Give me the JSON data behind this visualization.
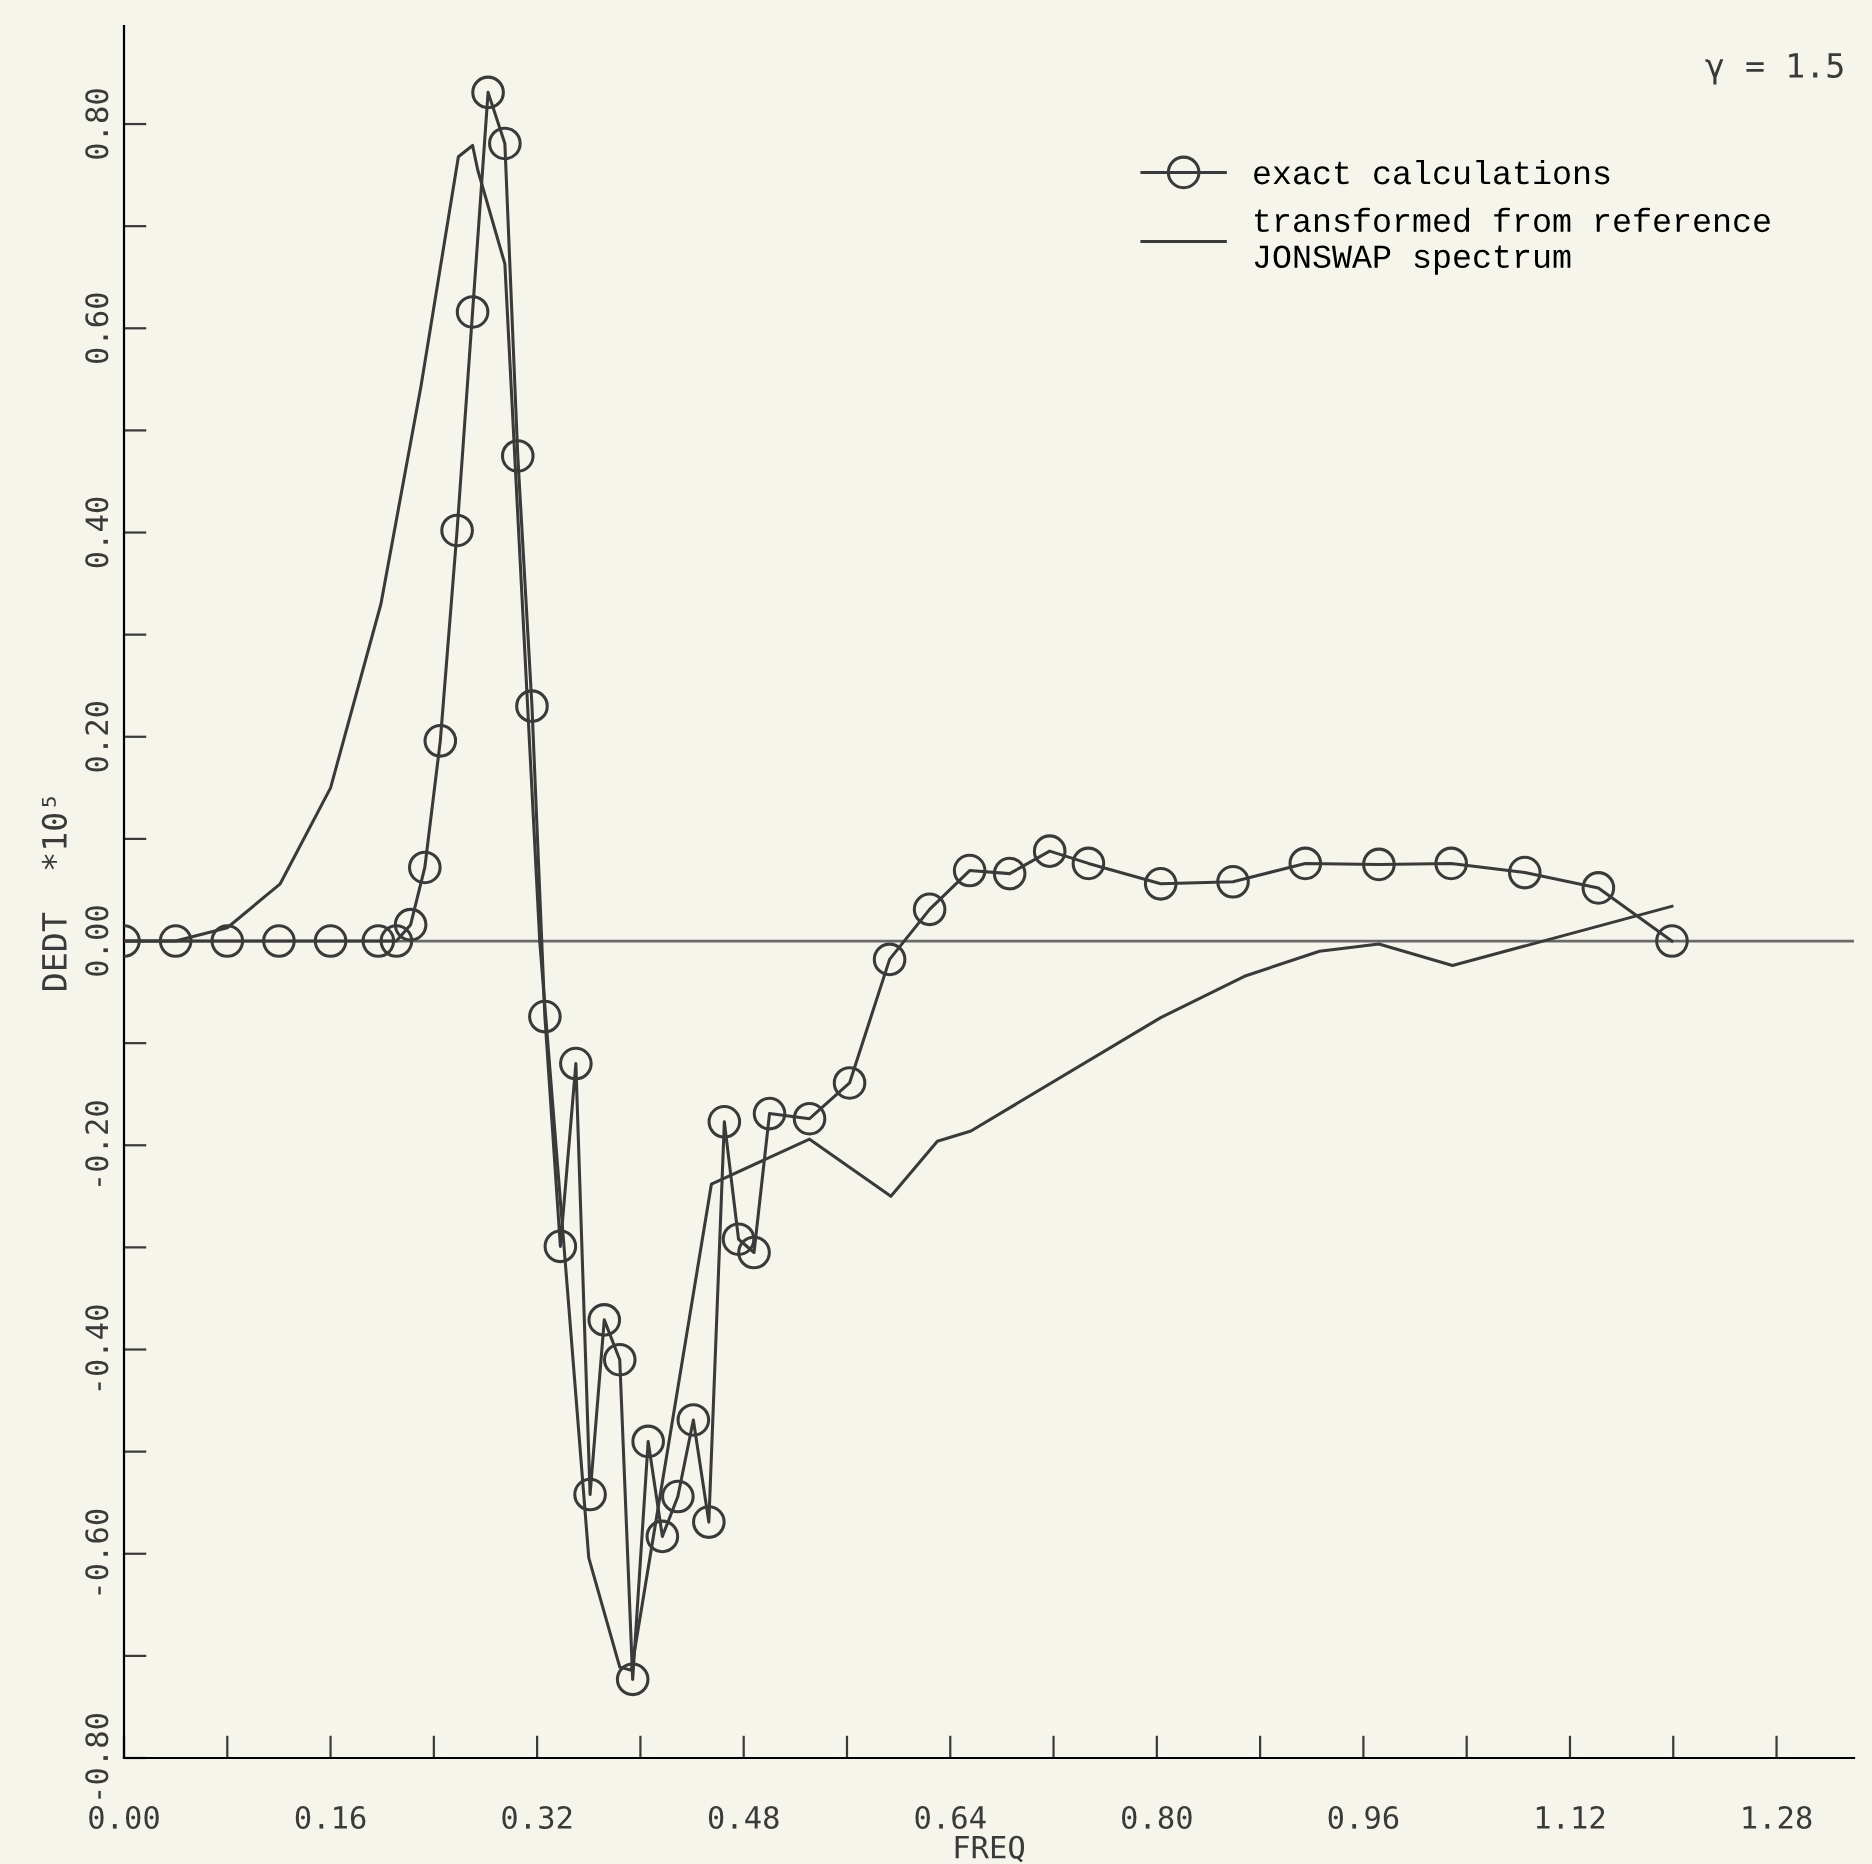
{
  "chart_data": {
    "type": "line",
    "xlabel": "FREQ",
    "ylabel": "DEDT  *10⁵",
    "annotations": [
      "γ = 1.5"
    ],
    "series": [
      {
        "name": "exact calculations",
        "color": "#3a3a3a",
        "marker": "circle",
        "x": [
          0,
          0.04,
          0.08,
          0.12,
          0.16,
          0.197,
          0.211,
          0.222,
          0.233,
          0.245,
          0.258,
          0.27,
          0.282,
          0.295,
          0.305,
          0.316,
          0.326,
          0.338,
          0.35,
          0.361,
          0.372,
          0.384,
          0.394,
          0.406,
          0.417,
          0.429,
          0.441,
          0.453,
          0.465,
          0.476,
          0.488,
          0.5,
          0.531,
          0.562,
          0.593,
          0.624,
          0.655,
          0.686,
          0.717,
          0.747,
          0.803,
          0.859,
          0.915,
          0.972,
          1.028,
          1.085,
          1.142,
          1.199
        ],
        "values": [
          0,
          0,
          0,
          0,
          0,
          0,
          0,
          0.016,
          0.072,
          0.196,
          0.402,
          0.616,
          0.831,
          0.781,
          0.475,
          0.23,
          -0.074,
          -0.299,
          -0.12,
          -0.542,
          -0.371,
          -0.41,
          -0.723,
          -0.49,
          -0.583,
          -0.544,
          -0.469,
          -0.569,
          -0.177,
          -0.292,
          -0.305,
          -0.169,
          -0.174,
          -0.139,
          -0.018,
          0.031,
          0.069,
          0.066,
          0.088,
          0.076,
          0.056,
          0.058,
          0.076,
          0.075,
          0.076,
          0.067,
          0.052,
          0
        ]
      },
      {
        "name": "transformed from reference\nJONSWAP spectrum",
        "color": "#3a3a3a",
        "marker": "none",
        "x": [
          0,
          0.04,
          0.08,
          0.121,
          0.16,
          0.199,
          0.23,
          0.259,
          0.27,
          0.274,
          0.295,
          0.322,
          0.36,
          0.384,
          0.393,
          0.455,
          0.531,
          0.594,
          0.63,
          0.656,
          0.803,
          0.869,
          0.926,
          0.972,
          1.029,
          1.199
        ],
        "values": [
          0,
          0,
          0.013,
          0.056,
          0.15,
          0.33,
          0.543,
          0.768,
          0.779,
          0.755,
          0.663,
          0,
          -0.604,
          -0.711,
          -0.714,
          -0.238,
          -0.194,
          -0.25,
          -0.196,
          -0.186,
          -0.075,
          -0.034,
          -0.01,
          -0.003,
          -0.024,
          0.034
        ]
      }
    ],
    "ref_lines": [
      {
        "axis": "y",
        "value": 0,
        "color": "#6a6a6a"
      }
    ],
    "xlim": [
      0,
      1.34
    ],
    "ylim": [
      -0.8,
      0.896
    ],
    "xticks": [
      {
        "value": 0,
        "label": "0.00"
      },
      {
        "value": 0.08,
        "label": null
      },
      0.16,
      {
        "value": 0.24,
        "label": null
      },
      0.32,
      {
        "value": 0.4,
        "label": null
      },
      0.48,
      {
        "value": 0.56,
        "label": null
      },
      0.64,
      {
        "value": 0.72,
        "label": null
      },
      {
        "value": 0.8,
        "label": "0.80"
      },
      {
        "value": 0.88,
        "label": null
      },
      0.96,
      {
        "value": 1.04,
        "label": null
      },
      1.12,
      {
        "value": 1.2,
        "label": null
      },
      1.28
    ],
    "yticks": [
      {
        "value": -0.8,
        "label": "-0.80"
      },
      {
        "value": -0.7,
        "label": null
      },
      {
        "value": -0.6,
        "label": "-0.60"
      },
      {
        "value": -0.5,
        "label": null
      },
      {
        "value": -0.4,
        "label": "-0.40"
      },
      {
        "value": -0.3,
        "label": null
      },
      {
        "value": -0.2,
        "label": "-0.20"
      },
      {
        "value": -0.1,
        "label": null
      },
      {
        "value": 0,
        "label": "0.00"
      },
      {
        "value": 0.1,
        "label": null
      },
      {
        "value": 0.2,
        "label": "0.20"
      },
      {
        "value": 0.3,
        "label": null
      },
      {
        "value": 0.4,
        "label": "0.40"
      },
      {
        "value": 0.5,
        "label": null
      },
      {
        "value": 0.6,
        "label": "0.60"
      },
      {
        "value": 0.7,
        "label": null
      },
      {
        "value": 0.8,
        "label": "0.80"
      }
    ],
    "legend": "top right",
    "grid": false
  }
}
